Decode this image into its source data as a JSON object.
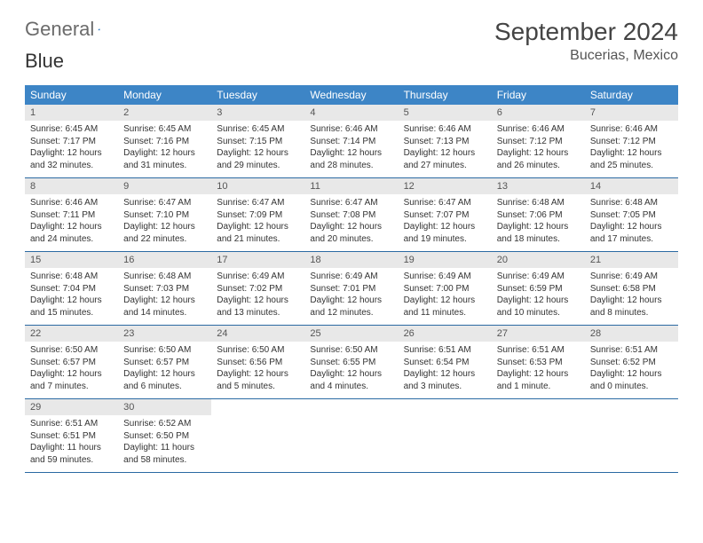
{
  "brand": {
    "part1": "General",
    "part2": "Blue"
  },
  "title": "September 2024",
  "location": "Bucerias, Mexico",
  "colors": {
    "header_bg": "#3d85c6",
    "header_text": "#ffffff",
    "daynum_bg": "#e8e8e8",
    "week_border": "#2b6aa3",
    "brand_gray": "#6b6b6b",
    "brand_blue": "#2b78c2"
  },
  "daynames": [
    "Sunday",
    "Monday",
    "Tuesday",
    "Wednesday",
    "Thursday",
    "Friday",
    "Saturday"
  ],
  "days": [
    {
      "n": "1",
      "sunrise": "Sunrise: 6:45 AM",
      "sunset": "Sunset: 7:17 PM",
      "d1": "Daylight: 12 hours",
      "d2": "and 32 minutes."
    },
    {
      "n": "2",
      "sunrise": "Sunrise: 6:45 AM",
      "sunset": "Sunset: 7:16 PM",
      "d1": "Daylight: 12 hours",
      "d2": "and 31 minutes."
    },
    {
      "n": "3",
      "sunrise": "Sunrise: 6:45 AM",
      "sunset": "Sunset: 7:15 PM",
      "d1": "Daylight: 12 hours",
      "d2": "and 29 minutes."
    },
    {
      "n": "4",
      "sunrise": "Sunrise: 6:46 AM",
      "sunset": "Sunset: 7:14 PM",
      "d1": "Daylight: 12 hours",
      "d2": "and 28 minutes."
    },
    {
      "n": "5",
      "sunrise": "Sunrise: 6:46 AM",
      "sunset": "Sunset: 7:13 PM",
      "d1": "Daylight: 12 hours",
      "d2": "and 27 minutes."
    },
    {
      "n": "6",
      "sunrise": "Sunrise: 6:46 AM",
      "sunset": "Sunset: 7:12 PM",
      "d1": "Daylight: 12 hours",
      "d2": "and 26 minutes."
    },
    {
      "n": "7",
      "sunrise": "Sunrise: 6:46 AM",
      "sunset": "Sunset: 7:12 PM",
      "d1": "Daylight: 12 hours",
      "d2": "and 25 minutes."
    },
    {
      "n": "8",
      "sunrise": "Sunrise: 6:46 AM",
      "sunset": "Sunset: 7:11 PM",
      "d1": "Daylight: 12 hours",
      "d2": "and 24 minutes."
    },
    {
      "n": "9",
      "sunrise": "Sunrise: 6:47 AM",
      "sunset": "Sunset: 7:10 PM",
      "d1": "Daylight: 12 hours",
      "d2": "and 22 minutes."
    },
    {
      "n": "10",
      "sunrise": "Sunrise: 6:47 AM",
      "sunset": "Sunset: 7:09 PM",
      "d1": "Daylight: 12 hours",
      "d2": "and 21 minutes."
    },
    {
      "n": "11",
      "sunrise": "Sunrise: 6:47 AM",
      "sunset": "Sunset: 7:08 PM",
      "d1": "Daylight: 12 hours",
      "d2": "and 20 minutes."
    },
    {
      "n": "12",
      "sunrise": "Sunrise: 6:47 AM",
      "sunset": "Sunset: 7:07 PM",
      "d1": "Daylight: 12 hours",
      "d2": "and 19 minutes."
    },
    {
      "n": "13",
      "sunrise": "Sunrise: 6:48 AM",
      "sunset": "Sunset: 7:06 PM",
      "d1": "Daylight: 12 hours",
      "d2": "and 18 minutes."
    },
    {
      "n": "14",
      "sunrise": "Sunrise: 6:48 AM",
      "sunset": "Sunset: 7:05 PM",
      "d1": "Daylight: 12 hours",
      "d2": "and 17 minutes."
    },
    {
      "n": "15",
      "sunrise": "Sunrise: 6:48 AM",
      "sunset": "Sunset: 7:04 PM",
      "d1": "Daylight: 12 hours",
      "d2": "and 15 minutes."
    },
    {
      "n": "16",
      "sunrise": "Sunrise: 6:48 AM",
      "sunset": "Sunset: 7:03 PM",
      "d1": "Daylight: 12 hours",
      "d2": "and 14 minutes."
    },
    {
      "n": "17",
      "sunrise": "Sunrise: 6:49 AM",
      "sunset": "Sunset: 7:02 PM",
      "d1": "Daylight: 12 hours",
      "d2": "and 13 minutes."
    },
    {
      "n": "18",
      "sunrise": "Sunrise: 6:49 AM",
      "sunset": "Sunset: 7:01 PM",
      "d1": "Daylight: 12 hours",
      "d2": "and 12 minutes."
    },
    {
      "n": "19",
      "sunrise": "Sunrise: 6:49 AM",
      "sunset": "Sunset: 7:00 PM",
      "d1": "Daylight: 12 hours",
      "d2": "and 11 minutes."
    },
    {
      "n": "20",
      "sunrise": "Sunrise: 6:49 AM",
      "sunset": "Sunset: 6:59 PM",
      "d1": "Daylight: 12 hours",
      "d2": "and 10 minutes."
    },
    {
      "n": "21",
      "sunrise": "Sunrise: 6:49 AM",
      "sunset": "Sunset: 6:58 PM",
      "d1": "Daylight: 12 hours",
      "d2": "and 8 minutes."
    },
    {
      "n": "22",
      "sunrise": "Sunrise: 6:50 AM",
      "sunset": "Sunset: 6:57 PM",
      "d1": "Daylight: 12 hours",
      "d2": "and 7 minutes."
    },
    {
      "n": "23",
      "sunrise": "Sunrise: 6:50 AM",
      "sunset": "Sunset: 6:57 PM",
      "d1": "Daylight: 12 hours",
      "d2": "and 6 minutes."
    },
    {
      "n": "24",
      "sunrise": "Sunrise: 6:50 AM",
      "sunset": "Sunset: 6:56 PM",
      "d1": "Daylight: 12 hours",
      "d2": "and 5 minutes."
    },
    {
      "n": "25",
      "sunrise": "Sunrise: 6:50 AM",
      "sunset": "Sunset: 6:55 PM",
      "d1": "Daylight: 12 hours",
      "d2": "and 4 minutes."
    },
    {
      "n": "26",
      "sunrise": "Sunrise: 6:51 AM",
      "sunset": "Sunset: 6:54 PM",
      "d1": "Daylight: 12 hours",
      "d2": "and 3 minutes."
    },
    {
      "n": "27",
      "sunrise": "Sunrise: 6:51 AM",
      "sunset": "Sunset: 6:53 PM",
      "d1": "Daylight: 12 hours",
      "d2": "and 1 minute."
    },
    {
      "n": "28",
      "sunrise": "Sunrise: 6:51 AM",
      "sunset": "Sunset: 6:52 PM",
      "d1": "Daylight: 12 hours",
      "d2": "and 0 minutes."
    },
    {
      "n": "29",
      "sunrise": "Sunrise: 6:51 AM",
      "sunset": "Sunset: 6:51 PM",
      "d1": "Daylight: 11 hours",
      "d2": "and 59 minutes."
    },
    {
      "n": "30",
      "sunrise": "Sunrise: 6:52 AM",
      "sunset": "Sunset: 6:50 PM",
      "d1": "Daylight: 11 hours",
      "d2": "and 58 minutes."
    }
  ]
}
